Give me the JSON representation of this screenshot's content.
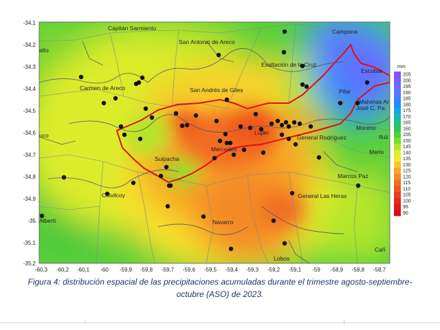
{
  "colorbar": {
    "unit": "mm",
    "labels": [
      "205",
      "200",
      "195",
      "190",
      "185",
      "180",
      "175",
      "170",
      "165",
      "160",
      "155",
      "150",
      "145",
      "140",
      "135",
      "130",
      "125",
      "120",
      "115",
      "110",
      "105",
      "100",
      "95",
      "90"
    ],
    "colors": [
      "#8a4dff",
      "#7a5cff",
      "#6b6bff",
      "#5a78ff",
      "#3f7fff",
      "#1e8cff",
      "#12a6ea",
      "#14b8b4",
      "#1cc487",
      "#28c85a",
      "#4fd235",
      "#7ddc2b",
      "#b0e62a",
      "#dcee2c",
      "#f6e62a",
      "#f7c62a",
      "#f6a728",
      "#f48a25",
      "#f26d22",
      "#ef561f",
      "#ec3e1c",
      "#e82a19",
      "#e41816",
      "#e00a14"
    ]
  },
  "axes": {
    "x_ticks": [
      "-60,3",
      "-60,2",
      "-60,1",
      "-60",
      "-59,9",
      "-59,8",
      "-59,7",
      "-59,6",
      "-59,5",
      "-59,4",
      "-59,3",
      "-59,2",
      "-59,1",
      "-59",
      "-58,9",
      "-58,8",
      "-58,7"
    ],
    "y_ticks": [
      "-34,1",
      "-34,2",
      "-34,3",
      "-34,4",
      "-34,5",
      "-34,6",
      "-34,7",
      "-34,8",
      "-34,9",
      "-35",
      "-35,1",
      "-35,2"
    ]
  },
  "places": [
    {
      "name": "Capitán Sarmiento"
    },
    {
      "name": "San Antonio de Areco"
    },
    {
      "name": "Campana"
    },
    {
      "name": "Exaltación de la Cruz"
    },
    {
      "name": "Escobar"
    },
    {
      "name": "Pilar"
    },
    {
      "name": "Malvinas Ar"
    },
    {
      "name": "José C. Pa"
    },
    {
      "name": "Moreno"
    },
    {
      "name": "Carmen de Areco"
    },
    {
      "name": "San Andrés de Giles"
    },
    {
      "name": "General Rodríguez"
    },
    {
      "name": "Luján"
    },
    {
      "name": "Mercedes"
    },
    {
      "name": "Suipacha"
    },
    {
      "name": "Merlo"
    },
    {
      "name": "Marcos Paz"
    },
    {
      "name": "Chivilcoy"
    },
    {
      "name": "General Las Heras"
    },
    {
      "name": "Navarro"
    },
    {
      "name": "Lobos"
    },
    {
      "name": "Alberti"
    },
    {
      "name": "alto"
    },
    {
      "name": "uco"
    },
    {
      "name": "Cañ"
    },
    {
      "name": "Ituz"
    }
  ],
  "caption": {
    "line1": "Figura 4: distribución espacial de las precipitaciones acumuladas durante el trimestre agosto-septiembre-",
    "line2": "octubre (ASO) de 2023."
  }
}
